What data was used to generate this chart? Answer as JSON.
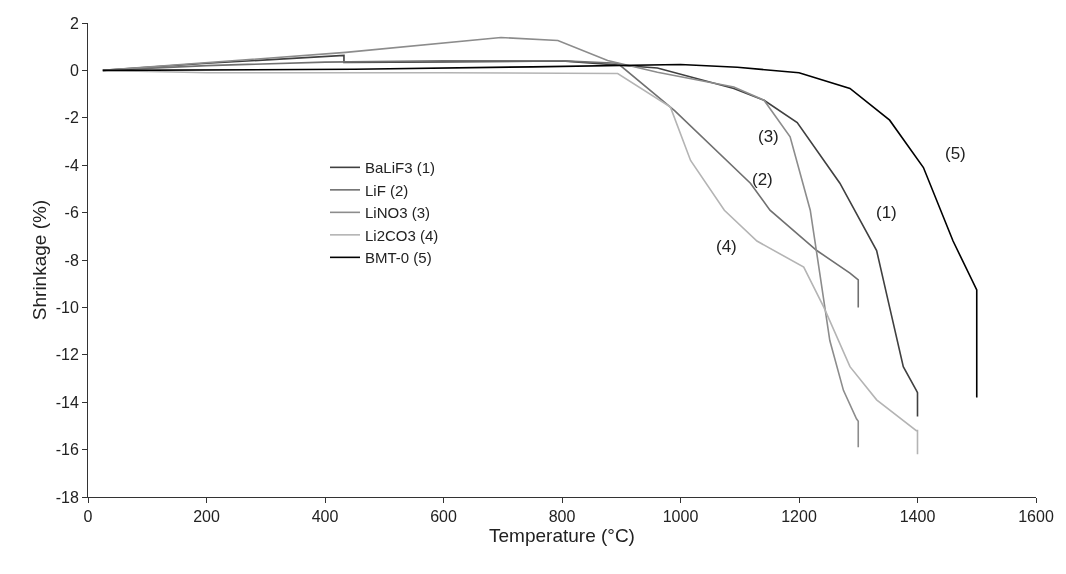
{
  "chart_data": {
    "type": "line",
    "xlabel": "Temperature (°C)",
    "ylabel": "Shrinkage (%)",
    "xlim": [
      0,
      1600
    ],
    "xticks": [
      0,
      200,
      400,
      600,
      800,
      1000,
      1200,
      1400,
      1600
    ],
    "ylim": [
      -18,
      2
    ],
    "yticks": [
      -18,
      -16,
      -14,
      -12,
      -10,
      -8,
      -6,
      -4,
      -2,
      0,
      2
    ],
    "grid": false,
    "legend": "left",
    "marker": "none",
    "line_style": "solid",
    "series": [
      {
        "name": "BaLiF3 (1)",
        "color": "#404040",
        "x": [
          25,
          200,
          432,
          432,
          600,
          800,
          961,
          1090,
          1141,
          1197,
          1269,
          1331,
          1353,
          1376,
          1398,
          1400,
          1400
        ],
        "values": [
          0,
          0.3,
          0.63,
          0.34,
          0.36,
          0.4,
          0.1,
          -0.76,
          -1.26,
          -2.2,
          -4.76,
          -7.6,
          -10,
          -12.5,
          -13.5,
          -13.6,
          -14.6
        ]
      },
      {
        "name": "LiF (2)",
        "color": "#707070",
        "x": [
          25,
          200,
          400,
          600,
          800,
          894,
          990,
          1118,
          1151,
          1230,
          1286,
          1300,
          1300
        ],
        "values": [
          0,
          0.2,
          0.35,
          0.4,
          0.4,
          0.3,
          -1.7,
          -4.76,
          -5.9,
          -7.6,
          -8.55,
          -8.84,
          -10
        ]
      },
      {
        "name": "LiNO3 (3)",
        "color": "#8c8c8c",
        "x": [
          25,
          435,
          697,
          793,
          877,
          961,
          1090,
          1141,
          1185,
          1219,
          1235,
          1252,
          1275,
          1297,
          1300,
          1300
        ],
        "values": [
          0,
          0.76,
          1.39,
          1.26,
          0.42,
          -0.08,
          -0.7,
          -1.26,
          -2.8,
          -5.9,
          -8.55,
          -11.4,
          -13.5,
          -14.7,
          -14.8,
          -15.9
        ]
      },
      {
        "name": "Li2CO3 (4)",
        "color": "#b4b4b4",
        "x": [
          25,
          200,
          600,
          894,
          983,
          1017,
          1074,
          1129,
          1208,
          1242,
          1286,
          1331,
          1398,
          1400,
          1400
        ],
        "values": [
          0,
          -0.1,
          -0.1,
          -0.13,
          -1.55,
          -3.8,
          -5.9,
          -7.2,
          -8.3,
          -10,
          -12.5,
          -13.9,
          -15.2,
          -15.2,
          -16.2
        ]
      },
      {
        "name": "BMT-0 (5)",
        "color": "#000000",
        "x": [
          25,
          450,
          750,
          1000,
          1096,
          1200,
          1286,
          1353,
          1410,
          1460,
          1500,
          1500
        ],
        "values": [
          0,
          0.05,
          0.15,
          0.25,
          0.13,
          -0.1,
          -0.76,
          -2.1,
          -4.1,
          -7.2,
          -9.26,
          -13.8
        ]
      }
    ],
    "annotations": [
      {
        "text": "(5)",
        "x": 1410,
        "y": -4.1
      },
      {
        "text": "(1)",
        "x": 1331,
        "y": -7.6
      },
      {
        "text": "(3)",
        "x": 1185,
        "y": -2.8
      },
      {
        "text": "(2)",
        "x": 1118,
        "y": -4.76
      },
      {
        "text": "(4)",
        "x": 1129,
        "y": -7.2
      }
    ]
  }
}
